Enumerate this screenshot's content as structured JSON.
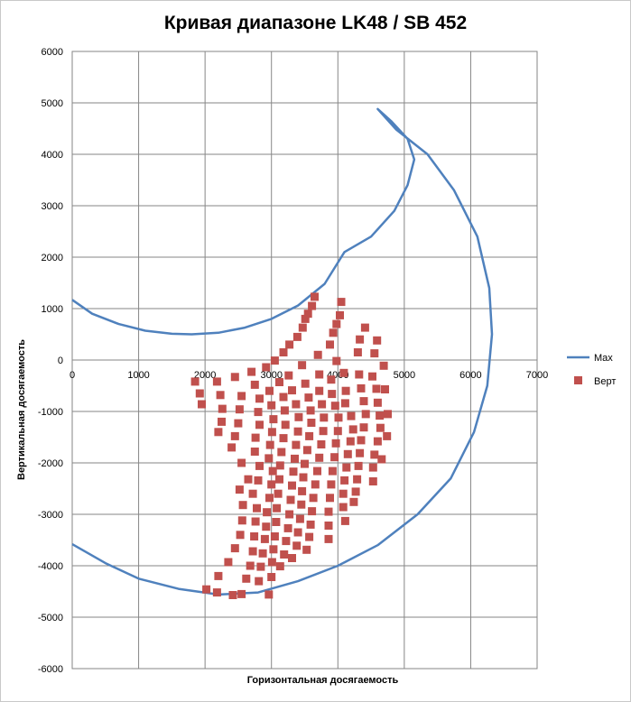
{
  "chart_data": {
    "type": "scatter",
    "title": "Кривая диапазоне LK48 / SB 452",
    "xlabel": "Горизонтальная  досягаемость",
    "ylabel": "Вертикальная  досягаемость",
    "xlim": [
      0,
      7000
    ],
    "ylim": [
      -6000,
      6000
    ],
    "xticks": [
      "0",
      "1000",
      "2000",
      "3000",
      "4000",
      "5000",
      "6000",
      "7000"
    ],
    "yticks": [
      "-6000",
      "-5000",
      "-4000",
      "-3000",
      "-2000",
      "-1000",
      "0",
      "1000",
      "2000",
      "3000",
      "4000",
      "5000",
      "6000"
    ],
    "grid": true,
    "legend_position": "right",
    "series": [
      {
        "name": "Max",
        "kind": "line",
        "color": "#4f81bd",
        "points": [
          [
            0,
            1170
          ],
          [
            300,
            900
          ],
          [
            700,
            700
          ],
          [
            1100,
            570
          ],
          [
            1500,
            510
          ],
          [
            1800,
            500
          ],
          [
            2200,
            530
          ],
          [
            2600,
            630
          ],
          [
            3000,
            800
          ],
          [
            3400,
            1060
          ],
          [
            3800,
            1480
          ],
          [
            4100,
            2100
          ],
          [
            4500,
            2400
          ],
          [
            4850,
            2900
          ],
          [
            5050,
            3400
          ],
          [
            5150,
            3900
          ],
          [
            5050,
            4300
          ],
          [
            4800,
            4650
          ],
          [
            4600,
            4880
          ],
          [
            4880,
            4480
          ],
          [
            5350,
            4000
          ],
          [
            5750,
            3300
          ],
          [
            6100,
            2400
          ],
          [
            6280,
            1400
          ],
          [
            6320,
            500
          ],
          [
            6250,
            -500
          ],
          [
            6050,
            -1400
          ],
          [
            5700,
            -2300
          ],
          [
            5200,
            -3000
          ],
          [
            4600,
            -3600
          ],
          [
            4000,
            -4000
          ],
          [
            3400,
            -4300
          ],
          [
            2800,
            -4520
          ],
          [
            2200,
            -4560
          ],
          [
            1600,
            -4450
          ],
          [
            1000,
            -4250
          ],
          [
            500,
            -3950
          ],
          [
            0,
            -3580
          ]
        ]
      },
      {
        "name": "Верт",
        "kind": "marker",
        "color": "#c0504d",
        "points": [
          [
            1850,
            -420
          ],
          [
            1920,
            -650
          ],
          [
            1950,
            -860
          ],
          [
            2180,
            -420
          ],
          [
            2230,
            -680
          ],
          [
            2260,
            -950
          ],
          [
            2250,
            -1200
          ],
          [
            2200,
            -1400
          ],
          [
            2450,
            -330
          ],
          [
            2550,
            -700
          ],
          [
            2520,
            -960
          ],
          [
            2500,
            -1230
          ],
          [
            2450,
            -1480
          ],
          [
            2400,
            -1700
          ],
          [
            2550,
            -2000
          ],
          [
            2650,
            -2320
          ],
          [
            2520,
            -2520
          ],
          [
            2570,
            -2820
          ],
          [
            2560,
            -3120
          ],
          [
            2530,
            -3400
          ],
          [
            2450,
            -3660
          ],
          [
            2350,
            -3930
          ],
          [
            2200,
            -4200
          ],
          [
            2180,
            -4520
          ],
          [
            2020,
            -4460
          ],
          [
            2700,
            -230
          ],
          [
            2750,
            -480
          ],
          [
            2820,
            -750
          ],
          [
            2800,
            -1010
          ],
          [
            2820,
            -1260
          ],
          [
            2760,
            -1510
          ],
          [
            2750,
            -1780
          ],
          [
            2820,
            -2060
          ],
          [
            2800,
            -2340
          ],
          [
            2720,
            -2600
          ],
          [
            2780,
            -2880
          ],
          [
            2760,
            -3140
          ],
          [
            2740,
            -3430
          ],
          [
            2720,
            -3720
          ],
          [
            2680,
            -4000
          ],
          [
            2620,
            -4250
          ],
          [
            2550,
            -4550
          ],
          [
            2420,
            -4570
          ],
          [
            2920,
            -140
          ],
          [
            2970,
            -600
          ],
          [
            3000,
            -880
          ],
          [
            3030,
            -1150
          ],
          [
            3010,
            -1400
          ],
          [
            2980,
            -1650
          ],
          [
            2960,
            -1910
          ],
          [
            3020,
            -2160
          ],
          [
            3000,
            -2420
          ],
          [
            2970,
            -2680
          ],
          [
            2930,
            -2960
          ],
          [
            2920,
            -3240
          ],
          [
            2900,
            -3480
          ],
          [
            2870,
            -3760
          ],
          [
            2840,
            -4020
          ],
          [
            2810,
            -4300
          ],
          [
            2960,
            -4560
          ],
          [
            3050,
            -10
          ],
          [
            3120,
            -430
          ],
          [
            3180,
            -720
          ],
          [
            3200,
            -980
          ],
          [
            3210,
            -1260
          ],
          [
            3180,
            -1520
          ],
          [
            3150,
            -1790
          ],
          [
            3130,
            -2050
          ],
          [
            3120,
            -2320
          ],
          [
            3100,
            -2600
          ],
          [
            3080,
            -2880
          ],
          [
            3070,
            -3150
          ],
          [
            3050,
            -3430
          ],
          [
            3030,
            -3680
          ],
          [
            3010,
            -3930
          ],
          [
            3000,
            -4220
          ],
          [
            3180,
            150
          ],
          [
            3270,
            300
          ],
          [
            3260,
            -300
          ],
          [
            3310,
            -590
          ],
          [
            3370,
            -860
          ],
          [
            3410,
            -1110
          ],
          [
            3400,
            -1390
          ],
          [
            3370,
            -1650
          ],
          [
            3350,
            -1920
          ],
          [
            3330,
            -2170
          ],
          [
            3310,
            -2440
          ],
          [
            3290,
            -2720
          ],
          [
            3270,
            -3000
          ],
          [
            3250,
            -3270
          ],
          [
            3220,
            -3520
          ],
          [
            3190,
            -3780
          ],
          [
            3130,
            -4010
          ],
          [
            3390,
            450
          ],
          [
            3470,
            630
          ],
          [
            3510,
            800
          ],
          [
            3460,
            -100
          ],
          [
            3510,
            -460
          ],
          [
            3560,
            -730
          ],
          [
            3590,
            -980
          ],
          [
            3600,
            -1220
          ],
          [
            3570,
            -1480
          ],
          [
            3540,
            -1750
          ],
          [
            3500,
            -2020
          ],
          [
            3480,
            -2280
          ],
          [
            3460,
            -2550
          ],
          [
            3450,
            -2810
          ],
          [
            3430,
            -3090
          ],
          [
            3400,
            -3350
          ],
          [
            3380,
            -3610
          ],
          [
            3310,
            -3850
          ],
          [
            3550,
            900
          ],
          [
            3610,
            1050
          ],
          [
            3650,
            1230
          ],
          [
            3700,
            100
          ],
          [
            3720,
            -280
          ],
          [
            3720,
            -600
          ],
          [
            3760,
            -860
          ],
          [
            3790,
            -1120
          ],
          [
            3780,
            -1380
          ],
          [
            3750,
            -1640
          ],
          [
            3720,
            -1900
          ],
          [
            3690,
            -2160
          ],
          [
            3660,
            -2420
          ],
          [
            3630,
            -2680
          ],
          [
            3610,
            -2940
          ],
          [
            3590,
            -3200
          ],
          [
            3570,
            -3440
          ],
          [
            3530,
            -3690
          ],
          [
            3880,
            300
          ],
          [
            3930,
            530
          ],
          [
            3980,
            700
          ],
          [
            3980,
            -20
          ],
          [
            3900,
            -380
          ],
          [
            3910,
            -660
          ],
          [
            3960,
            -890
          ],
          [
            4010,
            -1120
          ],
          [
            4000,
            -1380
          ],
          [
            3970,
            -1620
          ],
          [
            3950,
            -1890
          ],
          [
            3920,
            -2160
          ],
          [
            3900,
            -2420
          ],
          [
            3880,
            -2680
          ],
          [
            3860,
            -2950
          ],
          [
            3860,
            -3220
          ],
          [
            3860,
            -3480
          ],
          [
            4030,
            870
          ],
          [
            4050,
            1130
          ],
          [
            4090,
            -250
          ],
          [
            4120,
            -600
          ],
          [
            4110,
            -840
          ],
          [
            4200,
            -1090
          ],
          [
            4230,
            -1350
          ],
          [
            4190,
            -1580
          ],
          [
            4150,
            -1830
          ],
          [
            4130,
            -2090
          ],
          [
            4100,
            -2340
          ],
          [
            4080,
            -2600
          ],
          [
            4080,
            -2860
          ],
          [
            4110,
            -3130
          ],
          [
            4330,
            400
          ],
          [
            4410,
            630
          ],
          [
            4300,
            150
          ],
          [
            4320,
            -280
          ],
          [
            4350,
            -550
          ],
          [
            4390,
            -800
          ],
          [
            4420,
            -1050
          ],
          [
            4390,
            -1310
          ],
          [
            4350,
            -1560
          ],
          [
            4330,
            -1810
          ],
          [
            4310,
            -2060
          ],
          [
            4290,
            -2320
          ],
          [
            4270,
            -2560
          ],
          [
            4240,
            -2760
          ],
          [
            4550,
            130
          ],
          [
            4590,
            380
          ],
          [
            4520,
            -320
          ],
          [
            4580,
            -560
          ],
          [
            4600,
            -830
          ],
          [
            4630,
            -1080
          ],
          [
            4640,
            -1320
          ],
          [
            4600,
            -1580
          ],
          [
            4550,
            -1840
          ],
          [
            4530,
            -2090
          ],
          [
            4530,
            -2360
          ],
          [
            4690,
            -110
          ],
          [
            4710,
            -570
          ],
          [
            4750,
            -1050
          ],
          [
            4740,
            -1480
          ],
          [
            4660,
            -1930
          ]
        ]
      }
    ]
  }
}
